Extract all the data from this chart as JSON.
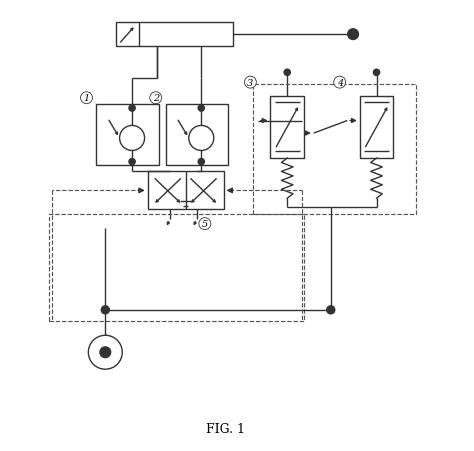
{
  "bg_color": "#ffffff",
  "line_color": "#333333",
  "dashed_color": "#555555",
  "fig_label": "FIG. 1",
  "component_labels": [
    "1",
    "2",
    "3",
    "4",
    "5"
  ],
  "figsize": [
    4.74,
    4.52
  ],
  "dpi": 100,
  "xlim": [
    0,
    10
  ],
  "ylim": [
    0,
    10
  ]
}
